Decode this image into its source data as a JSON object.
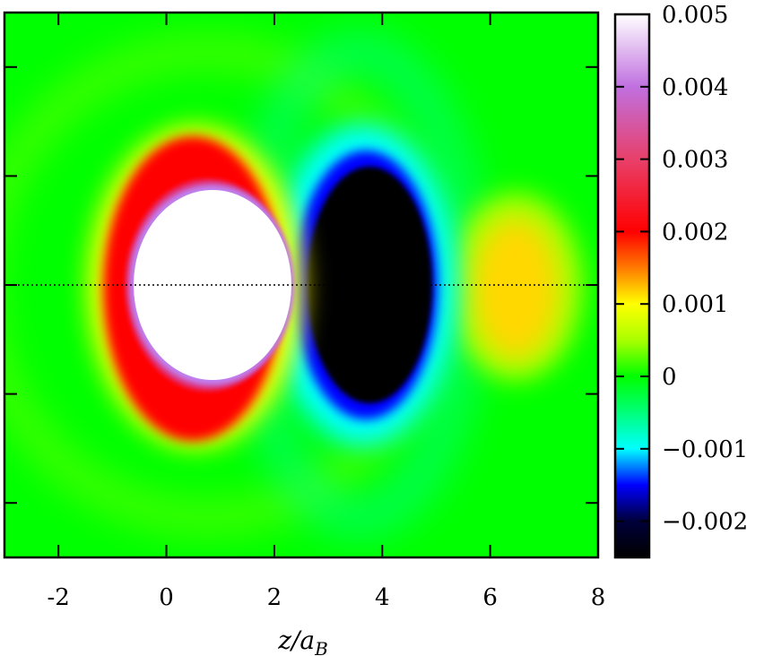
{
  "chart_data": {
    "type": "heatmap",
    "title": "",
    "xlabel": "z/a_B",
    "xlabel_parts": {
      "main": "z/a",
      "sub": "B"
    },
    "ylabel": "",
    "xlim": [
      -3,
      8
    ],
    "x_ticks": [
      -2,
      0,
      2,
      4,
      6,
      8
    ],
    "x_tick_labels": [
      "-2",
      "0",
      "2",
      "4",
      "6",
      "8"
    ],
    "y_ticks_count": 5,
    "colorbar": {
      "min": -0.0025,
      "max": 0.005,
      "ticks": [
        -0.002,
        -0.001,
        0,
        0.001,
        0.002,
        0.003,
        0.004,
        0.005
      ],
      "tick_labels": [
        "−0.002",
        "−0.001",
        "0",
        "0.001",
        "0.002",
        "0.003",
        "0.004",
        "0.005"
      ],
      "colors": [
        [
          -0.0025,
          "#000000"
        ],
        [
          -0.002,
          "#00003a"
        ],
        [
          -0.0015,
          "#0000ff"
        ],
        [
          -0.001,
          "#00ffff"
        ],
        [
          -0.0005,
          "#00ff7a"
        ],
        [
          0,
          "#00ff00"
        ],
        [
          0.0005,
          "#aaff00"
        ],
        [
          0.001,
          "#ffff00"
        ],
        [
          0.0015,
          "#ff7a00"
        ],
        [
          0.002,
          "#ff0000"
        ],
        [
          0.003,
          "#e8406a"
        ],
        [
          0.004,
          "#c070e0"
        ],
        [
          0.005,
          "#ffffff"
        ]
      ]
    },
    "annotations": {
      "dotted_axis_line": true
    },
    "features": [
      {
        "name": "positive-core",
        "cx": 0.75,
        "value": 0.006
      },
      {
        "name": "red-shell",
        "cx": 0.7,
        "value": 0.0021
      },
      {
        "name": "negative-lobe",
        "cx": 3.5,
        "value": -0.003
      },
      {
        "name": "cyan-halo",
        "cx": 3.5,
        "value": -0.001
      },
      {
        "name": "yellow-lobe",
        "cx": 6.4,
        "value": 0.0011
      }
    ]
  }
}
